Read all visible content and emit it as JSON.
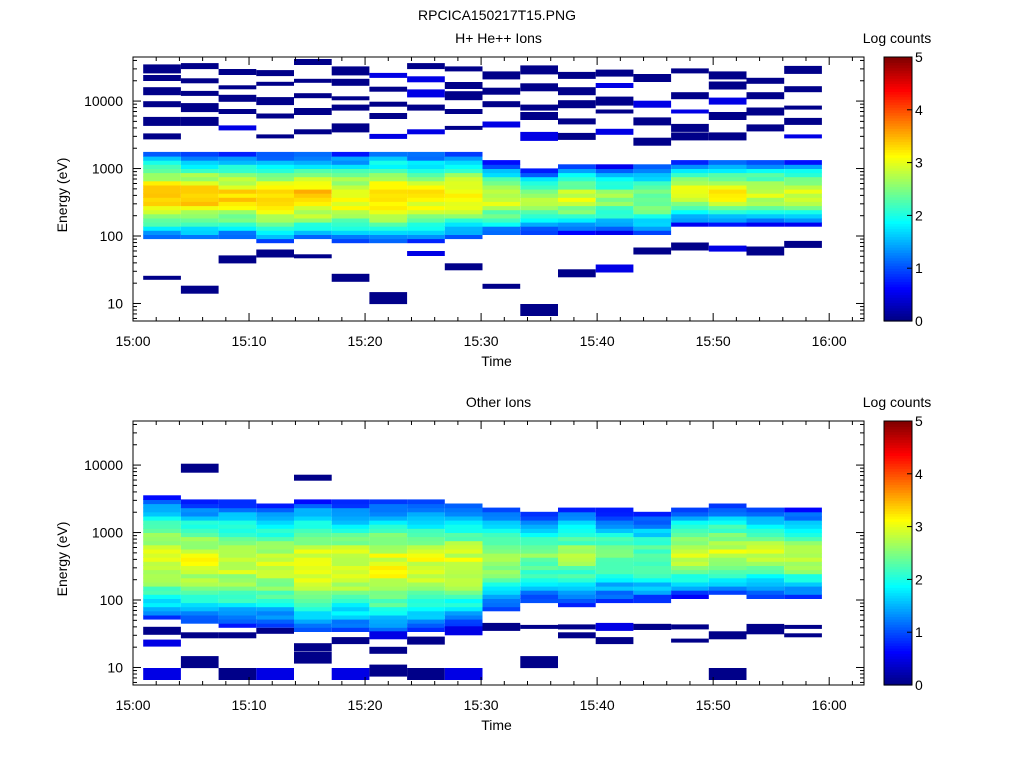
{
  "figure_title": "RPCICA150217T15.PNG",
  "colormap": [
    "#00007f",
    "#0000ff",
    "#007fff",
    "#00ffff",
    "#7fff7f",
    "#ffff00",
    "#ff7f00",
    "#ff0000",
    "#7f0000"
  ],
  "chart_data": [
    {
      "type": "heatmap",
      "title": "H+ He++ Ions",
      "xlabel": "Time",
      "ylabel": "Energy (eV)",
      "x_ticks": [
        "15:00",
        "15:10",
        "15:20",
        "15:30",
        "15:40",
        "15:50",
        "16:00"
      ],
      "y_ticks": [
        "10",
        "100",
        "1000",
        "10000"
      ],
      "y_scale": "log",
      "xlim": [
        "15:00",
        "16:03"
      ],
      "ylim": [
        5.5,
        45000
      ],
      "colorbar": {
        "label": "Log counts",
        "ticks": [
          "0",
          "1",
          "2",
          "3",
          "4",
          "5"
        ],
        "range": [
          0,
          5
        ]
      },
      "time_bins": [
        "15:02:30",
        "15:05:45",
        "15:09:00",
        "15:12:15",
        "15:15:30",
        "15:18:45",
        "15:22:00",
        "15:25:15",
        "15:28:30",
        "15:31:45",
        "15:35:00",
        "15:38:15",
        "15:41:30",
        "15:44:45",
        "15:48:00",
        "15:51:15",
        "15:54:30",
        "15:57:45"
      ],
      "bin_minutes": 3.25,
      "profiles": {
        "shape_by_bin": [
          [
            90,
            1800,
            3.4
          ],
          [
            90,
            1700,
            3.4
          ],
          [
            90,
            1700,
            3.3
          ],
          [
            80,
            1700,
            3.3
          ],
          [
            90,
            1700,
            3.4
          ],
          [
            80,
            1700,
            3.2
          ],
          [
            80,
            1800,
            3.4
          ],
          [
            80,
            1800,
            3.2
          ],
          [
            90,
            1800,
            3.2
          ],
          [
            100,
            1300,
            2.9
          ],
          [
            110,
            1000,
            2.8
          ],
          [
            110,
            1200,
            2.9
          ],
          [
            110,
            1100,
            2.6
          ],
          [
            100,
            1200,
            2.6
          ],
          [
            150,
            1300,
            3.0
          ],
          [
            150,
            1300,
            3.2
          ],
          [
            150,
            1300,
            3.0
          ],
          [
            150,
            1300,
            3.0
          ]
        ],
        "scatter_channels_by_bin": [
          [
            24,
            [
              3000,
              5000,
              9000,
              14000,
              22000,
              30000
            ]
          ],
          [
            16,
            [
              5000,
              8000,
              13000,
              20000,
              33000
            ]
          ],
          [
            45,
            [
              4000,
              7000,
              11000,
              16000,
              27000
            ]
          ],
          [
            55,
            [
              3000,
              6000,
              10000,
              18000,
              26000
            ]
          ],
          [
            50,
            [
              3500,
              7000,
              12000,
              20000,
              38000
            ]
          ],
          [
            24,
            [
              4000,
              8000,
              11000,
              19000,
              28000
            ]
          ],
          [
            12,
            [
              3000,
              6000,
              9000,
              15000,
              24000
            ]
          ],
          [
            55,
            [
              3500,
              8000,
              13000,
              21000,
              33000
            ]
          ],
          [
            35,
            [
              4000,
              7000,
              12000,
              17000,
              30000
            ]
          ],
          [
            18,
            [
              4500,
              9000,
              14000,
              24000
            ]
          ],
          [
            8,
            [
              3000,
              6000,
              8000,
              16000,
              29000
            ]
          ],
          [
            28,
            [
              3000,
              5000,
              9000,
              14000,
              24000
            ]
          ],
          [
            33,
            [
              3500,
              7000,
              10000,
              17000,
              26000
            ]
          ],
          [
            60,
            [
              2500,
              5000,
              9000,
              22000
            ]
          ],
          [
            70,
            [
              3000,
              4000,
              7000,
              12000,
              28000
            ]
          ],
          [
            65,
            [
              3000,
              6000,
              10000,
              17000,
              24000
            ]
          ],
          [
            60,
            [
              4000,
              7000,
              12000,
              20000
            ]
          ],
          [
            75,
            [
              3000,
              5000,
              8000,
              15000,
              29000
            ]
          ]
        ]
      }
    },
    {
      "type": "heatmap",
      "title": "Other Ions",
      "xlabel": "Time",
      "ylabel": "Energy (eV)",
      "x_ticks": [
        "15:00",
        "15:10",
        "15:20",
        "15:30",
        "15:40",
        "15:50",
        "16:00"
      ],
      "y_ticks": [
        "10",
        "100",
        "1000",
        "10000"
      ],
      "y_scale": "log",
      "xlim": [
        "15:00",
        "16:03"
      ],
      "ylim": [
        5.5,
        45000
      ],
      "colorbar": {
        "label": "Log counts",
        "ticks": [
          "0",
          "1",
          "2",
          "3",
          "4",
          "5"
        ],
        "range": [
          0,
          5
        ]
      },
      "time_bins": [
        "15:02:30",
        "15:05:45",
        "15:09:00",
        "15:12:15",
        "15:15:30",
        "15:18:45",
        "15:22:00",
        "15:25:15",
        "15:28:30",
        "15:31:45",
        "15:35:00",
        "15:38:15",
        "15:41:30",
        "15:44:45",
        "15:48:00",
        "15:51:15",
        "15:54:30",
        "15:57:45"
      ],
      "bin_minutes": 3.25,
      "profiles": {
        "shape_by_bin": [
          [
            50,
            3400,
            3.0
          ],
          [
            45,
            3000,
            3.0
          ],
          [
            40,
            3000,
            2.9
          ],
          [
            40,
            2800,
            2.9
          ],
          [
            35,
            3000,
            3.1
          ],
          [
            35,
            2900,
            3.0
          ],
          [
            30,
            3000,
            3.1
          ],
          [
            35,
            3000,
            3.0
          ],
          [
            40,
            2800,
            3.0
          ],
          [
            70,
            2400,
            2.7
          ],
          [
            90,
            2000,
            2.5
          ],
          [
            80,
            2500,
            2.6
          ],
          [
            90,
            2300,
            2.4
          ],
          [
            90,
            2000,
            2.4
          ],
          [
            110,
            2400,
            2.9
          ],
          [
            120,
            2600,
            2.9
          ],
          [
            110,
            2500,
            2.8
          ],
          [
            100,
            2200,
            2.8
          ]
        ],
        "scatter_channels_by_bin": [
          [
            8,
            [
              23,
              35
            ]
          ],
          [
            12,
            [
              9000,
              30
            ]
          ],
          [
            8,
            [
              30
            ]
          ],
          [
            8,
            [
              35
            ]
          ],
          [
            14,
            [
              6500,
              20
            ]
          ],
          [
            8,
            [
              25
            ]
          ],
          [
            9,
            [
              18,
              30
            ]
          ],
          [
            8,
            [
              25
            ]
          ],
          [
            8,
            [
              35
            ]
          ],
          [
            40,
            [
              40
            ]
          ],
          [
            12,
            [
              40
            ]
          ],
          [
            30,
            [
              40
            ]
          ],
          [
            25,
            [
              40
            ]
          ],
          [
            40,
            [
              40
            ]
          ],
          [
            25,
            [
              40
            ]
          ],
          [
            8,
            [
              30
            ]
          ],
          [
            35,
            [
              40
            ]
          ],
          [
            30,
            [
              40
            ]
          ]
        ]
      }
    }
  ]
}
